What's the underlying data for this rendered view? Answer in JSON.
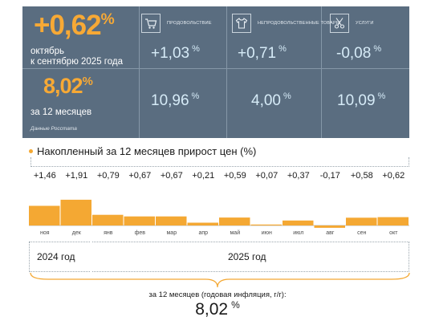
{
  "header": {
    "month_change_value": "+0,62",
    "month_change_unit": "%",
    "month_change_label_line1": "октябрь",
    "month_change_label_line2": "к сентябрю 2025 года",
    "annual_value": "8,02",
    "annual_unit": "%",
    "annual_label": "за 12 месяцев",
    "source": "Данные Росстата"
  },
  "categories": [
    {
      "label": "ПРОДОВОЛЬСТВИЕ",
      "icon": "shopping-cart-icon",
      "month_value": "+1,03",
      "annual_value": "10,96",
      "unit": "%"
    },
    {
      "label": "НЕПРОДОВОЛЬСТВЕННЫЕ ТОВАРЫ",
      "icon": "clothing-icon",
      "month_value": "+0,71",
      "annual_value": "4,00",
      "unit": "%"
    },
    {
      "label": "УСЛУГИ",
      "icon": "scissors-icon",
      "month_value": "-0,08",
      "annual_value": "10,09",
      "unit": "%"
    }
  ],
  "chart_title": "Накопленный за 12 месяцев прирост цен (%)",
  "chart_data": {
    "type": "bar",
    "title": "Накопленный за 12 месяцев прирост цен (%)",
    "categories": [
      "ноя",
      "дек",
      "янв",
      "фев",
      "мар",
      "апр",
      "май",
      "июн",
      "июл",
      "авг",
      "сен",
      "окт"
    ],
    "values": [
      1.46,
      1.91,
      0.79,
      0.67,
      0.67,
      0.21,
      0.59,
      0.07,
      0.37,
      -0.17,
      0.58,
      0.62
    ],
    "labels": [
      "+1,46",
      "+1,91",
      "+0,79",
      "+0,67",
      "+0,67",
      "+0,21",
      "+0,59",
      "+0,07",
      "+0,37",
      "-0,17",
      "+0,58",
      "+0,62"
    ],
    "color": "#f4a833",
    "groups": [
      {
        "label": "2024 год",
        "months": [
          "ноя",
          "дек"
        ]
      },
      {
        "label": "2025 год",
        "months": [
          "янв",
          "фев",
          "мар",
          "апр",
          "май",
          "июн",
          "июл",
          "авг",
          "сен",
          "окт"
        ]
      }
    ]
  },
  "summary": {
    "label": "за 12 месяцев (годовая инфляция, г/г):",
    "value": "8,02",
    "unit": "%"
  }
}
